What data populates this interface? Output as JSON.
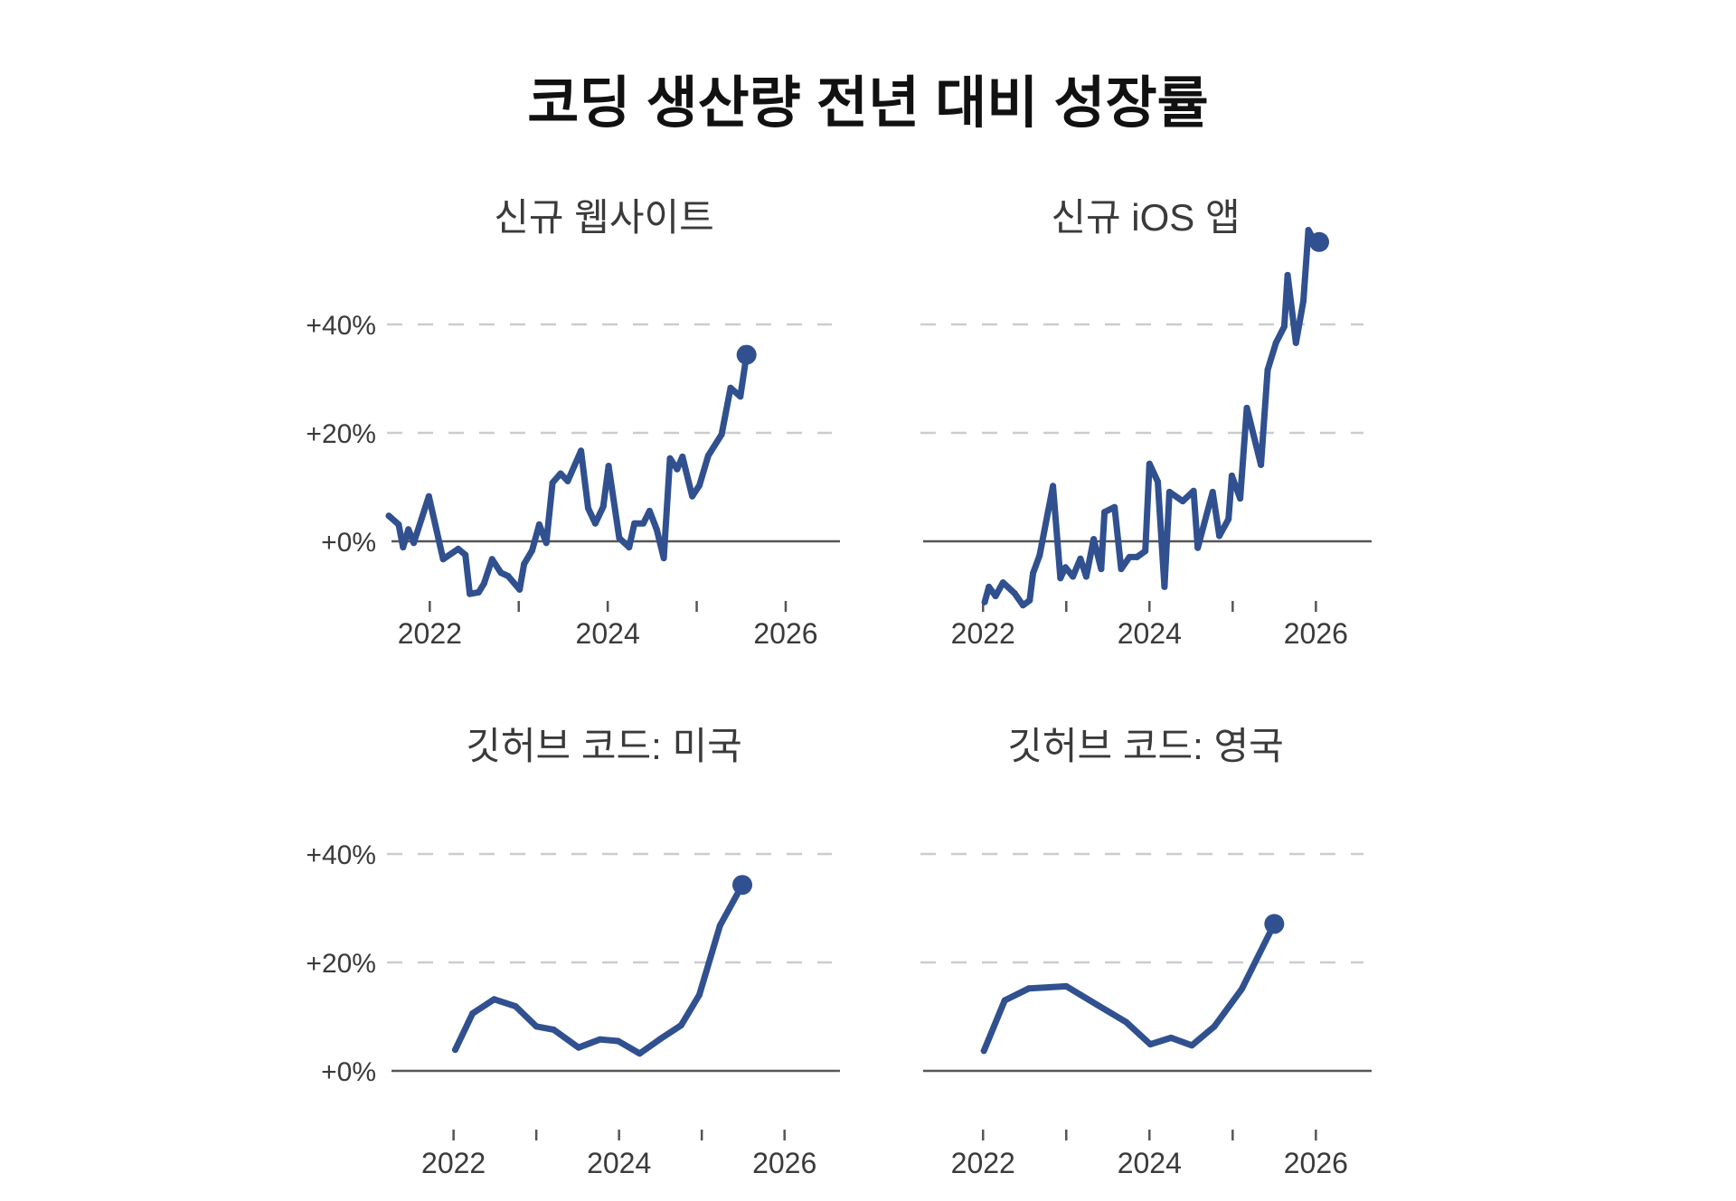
{
  "title": "코딩 생산량 전년 대비 성장률",
  "colors": {
    "line": "#30508f",
    "grid": "#cccccc",
    "axis": "#555555",
    "text": "#3a3a3a"
  },
  "chart_data": [
    {
      "type": "line",
      "title": "신규 웹사이트",
      "xlim": [
        2021.57,
        2026.61
      ],
      "ylim": [
        -10,
        40
      ],
      "x_ticks": [
        2022,
        2023,
        2024,
        2025,
        2026
      ],
      "x_tick_labels": [
        "2022",
        "",
        "2024",
        "",
        "2026"
      ],
      "y_ticks": [
        40,
        20,
        0
      ],
      "y_tick_labels": [
        "+40%",
        "+20%",
        "+0%"
      ],
      "grid": "dashed horizontal",
      "x": [
        2021.54,
        2021.65,
        2021.7,
        2021.76,
        2021.82,
        2021.99,
        2022.15,
        2022.32,
        2022.4,
        2022.45,
        2022.55,
        2022.61,
        2022.7,
        2022.8,
        2022.88,
        2023.01,
        2023.06,
        2023.15,
        2023.23,
        2023.31,
        2023.38,
        2023.47,
        2023.55,
        2023.7,
        2023.78,
        2023.86,
        2023.95,
        2024.01,
        2024.13,
        2024.24,
        2024.3,
        2024.4,
        2024.47,
        2024.55,
        2024.63,
        2024.7,
        2024.78,
        2024.84,
        2024.95,
        2025.03,
        2025.13,
        2025.28,
        2025.38,
        2025.49,
        2025.56
      ],
      "y": [
        4.7,
        3.1,
        -1.1,
        2.2,
        -0.3,
        8.3,
        -3.3,
        -1.4,
        -2.5,
        -9.7,
        -9.4,
        -7.8,
        -3.3,
        -5.8,
        -6.4,
        -8.9,
        -4.2,
        -1.7,
        3.1,
        -0.3,
        10.8,
        12.5,
        11.1,
        16.7,
        6.1,
        3.3,
        6.4,
        13.9,
        0.6,
        -1.1,
        3.3,
        3.3,
        5.6,
        2.2,
        -3.1,
        15.3,
        13.3,
        15.6,
        8.3,
        10.3,
        15.8,
        19.7,
        28.3,
        26.7,
        34.4
      ]
    },
    {
      "type": "line",
      "title": "신규 iOS 앱",
      "xlim": [
        2021.28,
        2026.67
      ],
      "ylim": [
        -12,
        58
      ],
      "x_ticks": [
        2022,
        2023,
        2024,
        2025,
        2026
      ],
      "x_tick_labels": [
        "2022",
        "",
        "2024",
        "",
        "2026"
      ],
      "y_ticks": [
        40,
        20,
        0
      ],
      "y_tick_labels": [
        "",
        "",
        ""
      ],
      "grid": "dashed horizontal",
      "x": [
        2022.02,
        2022.07,
        2022.15,
        2022.24,
        2022.38,
        2022.48,
        2022.56,
        2022.6,
        2022.68,
        2022.84,
        2022.93,
        2022.99,
        2023.08,
        2023.17,
        2023.24,
        2023.33,
        2023.42,
        2023.46,
        2023.58,
        2023.66,
        2023.76,
        2023.85,
        2023.95,
        2024.0,
        2024.1,
        2024.18,
        2024.24,
        2024.4,
        2024.53,
        2024.58,
        2024.76,
        2024.84,
        2024.95,
        2024.99,
        2025.09,
        2025.17,
        2025.34,
        2025.42,
        2025.52,
        2025.62,
        2025.66,
        2025.76,
        2025.85,
        2025.91,
        2025.97,
        2026.04
      ],
      "y": [
        -11.2,
        -8.4,
        -10.1,
        -7.6,
        -9.6,
        -11.8,
        -10.9,
        -5.9,
        -2.6,
        10.2,
        -6.8,
        -4.8,
        -6.5,
        -3.2,
        -6.5,
        0.4,
        -5.1,
        5.4,
        6.3,
        -5.1,
        -2.9,
        -2.9,
        -1.8,
        14.3,
        11.0,
        -8.4,
        9.1,
        7.4,
        9.3,
        -1.2,
        9.1,
        1.0,
        4.1,
        12.1,
        7.9,
        24.6,
        14.1,
        31.6,
        36.6,
        39.6,
        49.1,
        36.6,
        44.3,
        57.4,
        55.7,
        55.2
      ]
    },
    {
      "type": "line",
      "title": "깃허브 코드: 미국",
      "xlim": [
        2021.25,
        2026.67
      ],
      "ylim": [
        -10,
        40
      ],
      "x_ticks": [
        2022,
        2023,
        2024,
        2025,
        2026
      ],
      "x_tick_labels": [
        "2022",
        "",
        "2024",
        "",
        "2026"
      ],
      "y_ticks": [
        40,
        20,
        0
      ],
      "y_tick_labels": [
        "+40%",
        "+20%",
        "+0%"
      ],
      "grid": "dashed horizontal",
      "x": [
        2022.02,
        2022.23,
        2022.49,
        2022.75,
        2023.0,
        2023.21,
        2023.51,
        2023.77,
        2023.99,
        2024.25,
        2024.5,
        2024.75,
        2024.97,
        2025.22,
        2025.49
      ],
      "y": [
        3.9,
        10.6,
        13.2,
        11.9,
        8.2,
        7.6,
        4.3,
        5.8,
        5.5,
        3.2,
        5.9,
        8.4,
        14.0,
        26.8,
        34.3
      ]
    },
    {
      "type": "line",
      "title": "깃허브 코드: 영국",
      "xlim": [
        2021.28,
        2026.67
      ],
      "ylim": [
        -10,
        40
      ],
      "x_ticks": [
        2022,
        2023,
        2024,
        2025,
        2026
      ],
      "x_tick_labels": [
        "2022",
        "",
        "2024",
        "",
        "2026"
      ],
      "y_ticks": [
        40,
        20,
        0
      ],
      "y_tick_labels": [
        "",
        "",
        ""
      ],
      "grid": "dashed horizontal",
      "x": [
        2022.01,
        2022.26,
        2022.55,
        2023.0,
        2023.38,
        2023.72,
        2024.01,
        2024.26,
        2024.51,
        2024.78,
        2025.11,
        2025.5
      ],
      "y": [
        3.7,
        13.0,
        15.2,
        15.6,
        12.1,
        9.0,
        4.9,
        6.1,
        4.7,
        8.2,
        15.1,
        27.1
      ]
    }
  ]
}
